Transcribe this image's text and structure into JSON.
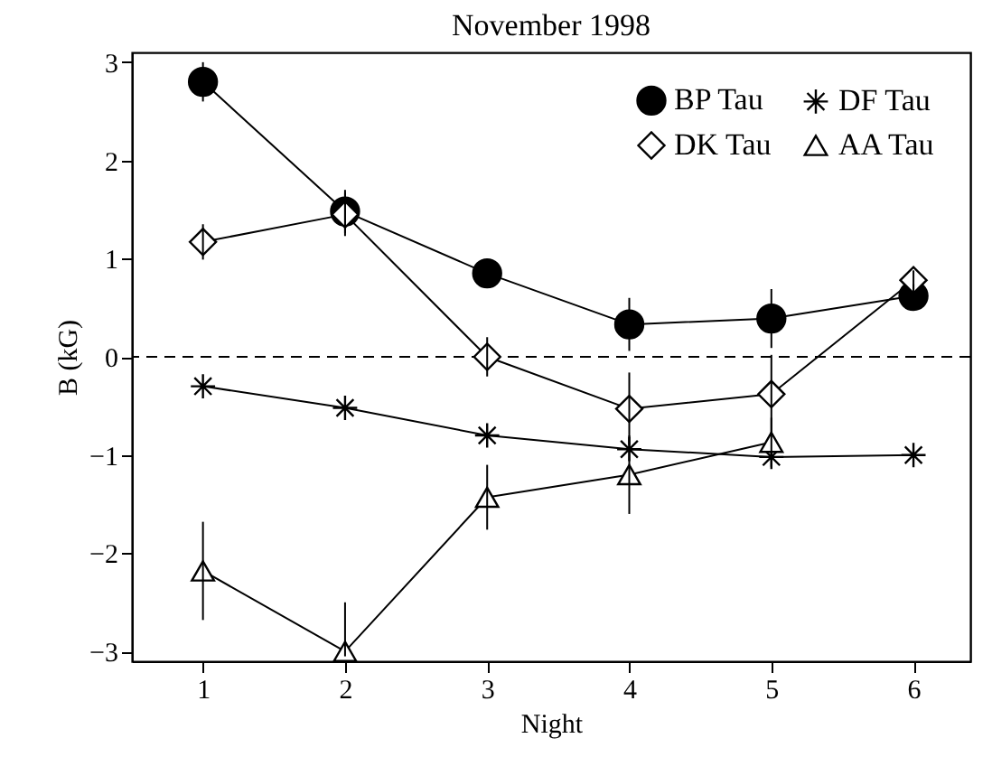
{
  "chart_data": {
    "type": "line",
    "title": "November 1998",
    "xlabel": "Night",
    "ylabel": "B (kG)",
    "x": [
      1,
      2,
      3,
      4,
      5,
      6
    ],
    "series": [
      {
        "name": "BP Tau",
        "color": "#000000",
        "marker": "circle",
        "values": [
          2.8,
          1.48,
          0.85,
          0.33,
          0.39,
          0.62
        ],
        "errors": [
          0.2,
          0.22,
          0.15,
          0.27,
          0.3,
          0.12
        ]
      },
      {
        "name": "DK Tau",
        "color": "#000000",
        "marker": "diamond",
        "values": [
          1.17,
          1.45,
          0.0,
          -0.53,
          -0.38,
          0.78
        ],
        "errors": [
          0.18,
          0.22,
          0.2,
          0.37,
          0.4,
          0.1
        ]
      },
      {
        "name": "DF Tau",
        "color": "#000000",
        "marker": "cross",
        "values": [
          -0.3,
          -0.52,
          -0.8,
          -0.94,
          -1.02,
          -1.0
        ]
      },
      {
        "name": "AA Tau",
        "color": "#000000",
        "marker": "triangle",
        "values": [
          -2.18,
          -3.0,
          -1.43,
          -1.2,
          -0.87,
          null
        ],
        "errors": [
          0.5,
          [
            -3.05,
            -2.5
          ],
          0.33,
          0.4,
          0.25,
          null
        ]
      }
    ],
    "xlim": [
      0.5,
      6.4
    ],
    "ylim": [
      -3.1,
      3.1
    ],
    "xticks": [
      1,
      2,
      3,
      4,
      5,
      6
    ],
    "yticks": [
      -3,
      -2,
      -1,
      0,
      1,
      2,
      3
    ],
    "ref_lines": [
      {
        "axis": "y",
        "value": 0,
        "line_style": "dashed",
        "color": "#000000"
      }
    ],
    "grid": false,
    "legend": "top right",
    "line_style": "solid"
  }
}
